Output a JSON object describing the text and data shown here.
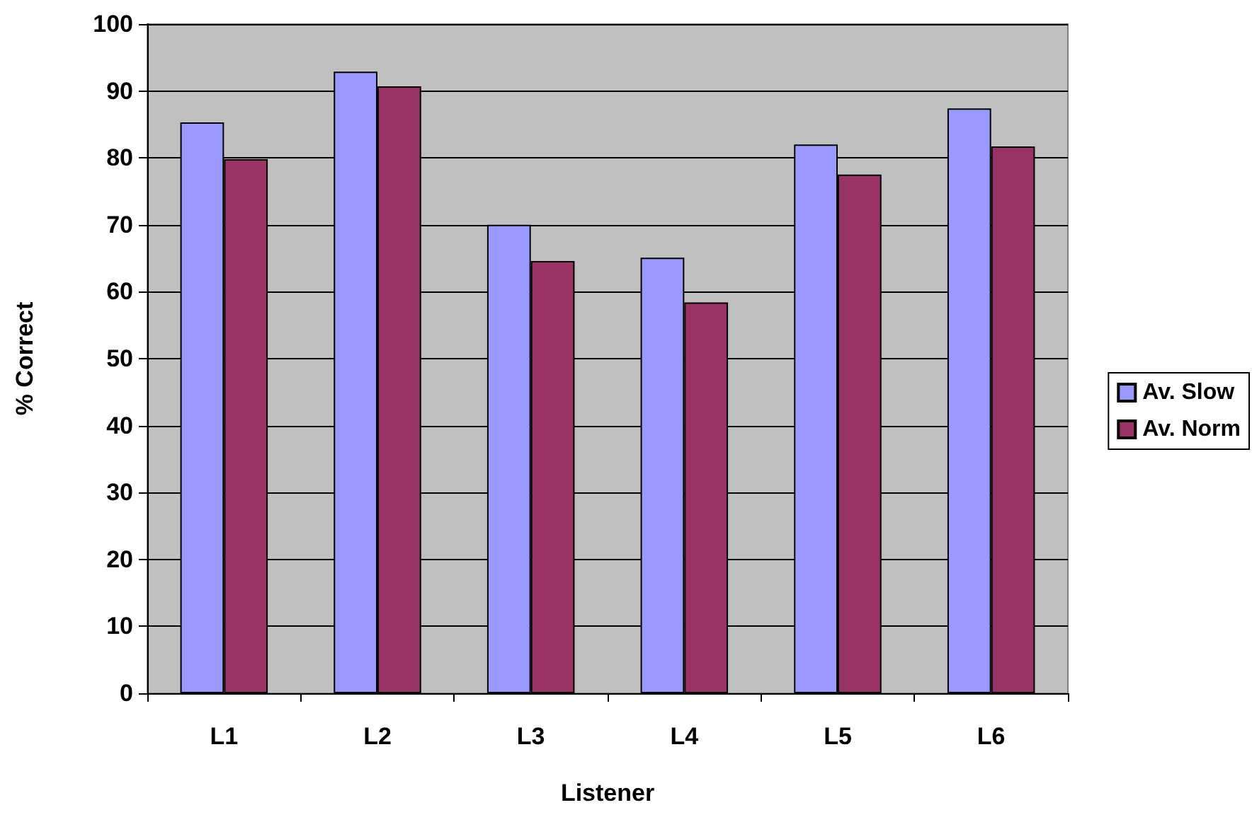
{
  "chart_data": {
    "type": "bar",
    "xlabel": "Listener",
    "ylabel": "% Correct",
    "categories": [
      "L1",
      "L2",
      "L3",
      "L4",
      "L5",
      "L6"
    ],
    "series": [
      {
        "name": "Av. Slow",
        "color": "#9999ff",
        "values": [
          85.3,
          92.9,
          70.0,
          65.1,
          82.0,
          87.4
        ]
      },
      {
        "name": "Av. Norm",
        "color": "#993366",
        "values": [
          79.8,
          90.7,
          64.6,
          58.4,
          77.5,
          81.7
        ]
      }
    ],
    "ylim": [
      0,
      100
    ],
    "yticks": [
      0,
      10,
      20,
      30,
      40,
      50,
      60,
      70,
      80,
      90,
      100
    ],
    "grid": "y",
    "legend": "right"
  }
}
